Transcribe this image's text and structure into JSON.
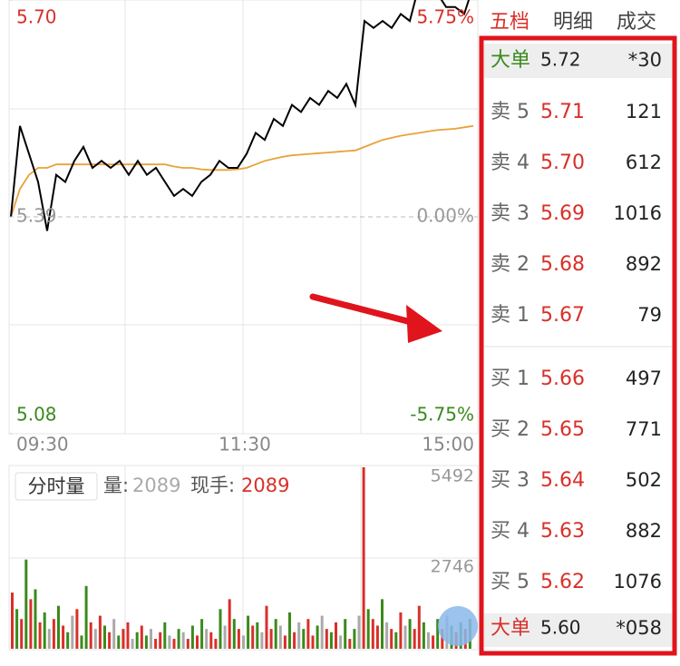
{
  "price_chart": {
    "type": "line",
    "values": [
      5.39,
      5.52,
      5.48,
      5.44,
      5.37,
      5.45,
      5.44,
      5.47,
      5.49,
      5.46,
      5.47,
      5.46,
      5.47,
      5.45,
      5.47,
      5.45,
      5.46,
      5.44,
      5.42,
      5.43,
      5.42,
      5.44,
      5.45,
      5.47,
      5.46,
      5.46,
      5.48,
      5.51,
      5.5,
      5.53,
      5.52,
      5.55,
      5.54,
      5.56,
      5.55,
      5.57,
      5.56,
      5.58,
      5.55,
      5.67,
      5.66,
      5.67,
      5.66,
      5.68,
      5.67,
      5.72,
      5.71,
      5.71,
      5.69,
      5.69,
      5.68,
      5.72
    ],
    "avg_values": [
      5.39,
      5.43,
      5.45,
      5.46,
      5.46,
      5.465,
      5.465,
      5.465,
      5.465,
      5.465,
      5.465,
      5.465,
      5.465,
      5.465,
      5.465,
      5.465,
      5.465,
      5.465,
      5.462,
      5.46,
      5.46,
      5.458,
      5.457,
      5.457,
      5.457,
      5.458,
      5.46,
      5.465,
      5.47,
      5.473,
      5.476,
      5.478,
      5.479,
      5.48,
      5.481,
      5.482,
      5.483,
      5.484,
      5.485,
      5.49,
      5.495,
      5.5,
      5.503,
      5.506,
      5.508,
      5.51,
      5.512,
      5.514,
      5.515,
      5.516,
      5.518,
      5.52
    ],
    "color": "#000000",
    "avg_color": "#e8a23a",
    "ylim": [
      5.08,
      5.7
    ],
    "yticks": [
      {
        "value": 5.7,
        "label": "5.70"
      },
      {
        "value": 5.39,
        "label": "5.39"
      },
      {
        "value": 5.08,
        "label": "5.08"
      }
    ],
    "pct_ticks": [
      {
        "value": 5.7,
        "label": "5.75%"
      },
      {
        "value": 5.39,
        "label": "0.00%"
      },
      {
        "value": 5.08,
        "label": "-5.75%"
      }
    ],
    "x_labels": [
      "09:30",
      "11:30",
      "15:00"
    ]
  },
  "volume_chart": {
    "type": "bar",
    "title": "分时量",
    "vol_label": "量:",
    "vol_value": "2089",
    "hand_label": "现手:",
    "hand_value": "2089",
    "ylim": [
      0,
      5492
    ],
    "yticks": [
      5492,
      2746
    ],
    "values": [
      1700,
      1200,
      900,
      2700,
      1500,
      1800,
      800,
      1100,
      600,
      900,
      1300,
      700,
      500,
      1000,
      1200,
      400,
      1900,
      800,
      600,
      1000,
      700,
      500,
      900,
      400,
      600,
      800,
      300,
      500,
      700,
      400,
      600,
      300,
      500,
      800,
      400,
      300,
      600,
      500,
      300,
      700,
      400,
      900,
      600,
      500,
      300,
      1200,
      700,
      1500,
      900,
      600,
      400,
      1000,
      700,
      800,
      500,
      1300,
      600,
      900,
      700,
      400,
      1100,
      500,
      800,
      600,
      900,
      400,
      700,
      1000,
      600,
      500,
      800,
      400,
      900,
      300,
      600,
      1000,
      5492,
      1200,
      900,
      700,
      1500,
      800,
      600,
      500,
      1100,
      700,
      900,
      600,
      1300,
      800,
      500,
      400,
      900,
      600,
      1000,
      700,
      500,
      800,
      600,
      900
    ],
    "dirs": [
      1,
      -1,
      1,
      -1,
      1,
      -1,
      1,
      -1,
      0,
      1,
      -1,
      1,
      -1,
      0,
      1,
      -1,
      -1,
      1,
      0,
      1,
      -1,
      1,
      0,
      -1,
      1,
      1,
      0,
      -1,
      1,
      -1,
      0,
      1,
      1,
      -1,
      0,
      1,
      -1,
      0,
      1,
      -1,
      1,
      -1,
      0,
      1,
      1,
      -1,
      0,
      1,
      -1,
      1,
      0,
      -1,
      1,
      -1,
      0,
      1,
      1,
      -1,
      0,
      1,
      -1,
      1,
      0,
      -1,
      1,
      1,
      -1,
      0,
      1,
      -1,
      1,
      0,
      -1,
      1,
      -1,
      0,
      1,
      -1,
      1,
      1,
      -1,
      0,
      1,
      -1,
      1,
      0,
      -1,
      1,
      1,
      -1,
      0,
      1,
      -1,
      1,
      0,
      -1,
      1,
      -1,
      1,
      -1
    ],
    "colors": {
      "1": "#d8302a",
      "-1": "#3a8a1c",
      "0": "#aaaaaa"
    }
  },
  "tabs": [
    "五档",
    "明细",
    "成交"
  ],
  "big_top": {
    "label": "大单",
    "price": "5.72",
    "vol": "*30"
  },
  "sell": [
    {
      "label": "卖 5",
      "price": "5.71",
      "vol": "121"
    },
    {
      "label": "卖 4",
      "price": "5.70",
      "vol": "612"
    },
    {
      "label": "卖 3",
      "price": "5.69",
      "vol": "1016"
    },
    {
      "label": "卖 2",
      "price": "5.68",
      "vol": "892"
    },
    {
      "label": "卖 1",
      "price": "5.67",
      "vol": "79"
    }
  ],
  "buy": [
    {
      "label": "买 1",
      "price": "5.66",
      "vol": "497"
    },
    {
      "label": "买 2",
      "price": "5.65",
      "vol": "771"
    },
    {
      "label": "买 3",
      "price": "5.64",
      "vol": "502"
    },
    {
      "label": "买 4",
      "price": "5.63",
      "vol": "882"
    },
    {
      "label": "买 5",
      "price": "5.62",
      "vol": "1076"
    }
  ],
  "big_bottom": {
    "label": "大单",
    "price": "5.60",
    "vol": "*058"
  }
}
